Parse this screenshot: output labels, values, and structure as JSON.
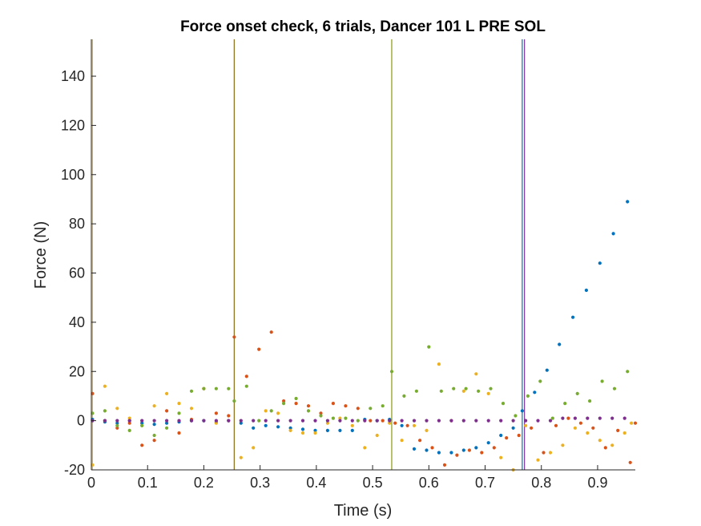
{
  "chart_data": {
    "type": "scatter",
    "title": "Force onset check, 6 trials, Dancer 101 L PRE SOL",
    "xlabel": "Time (s)",
    "ylabel": "Force (N)",
    "xlim": [
      0,
      0.967
    ],
    "ylim": [
      -20,
      155
    ],
    "xticks": [
      0,
      0.1,
      0.2,
      0.3,
      0.4,
      0.5,
      0.6,
      0.7,
      0.8,
      0.9
    ],
    "xtick_labels": [
      "0",
      "0.1",
      "0.2",
      "0.3",
      "0.4",
      "0.5",
      "0.6",
      "0.7",
      "0.8",
      "0.9"
    ],
    "yticks": [
      -20,
      0,
      20,
      40,
      60,
      80,
      100,
      120,
      140
    ],
    "ytick_labels": [
      "-20",
      "0",
      "20",
      "40",
      "60",
      "80",
      "100",
      "120",
      "140"
    ],
    "grid": false,
    "onset_lines": [
      {
        "x": 0.002,
        "color": "#EDB120"
      },
      {
        "x": 0.254,
        "color": "#8B6D14"
      },
      {
        "x": 0.534,
        "color": "#8A9A14"
      },
      {
        "x": 0.766,
        "color": "#0072BD"
      },
      {
        "x": 0.77,
        "color": "#7E2F8E"
      }
    ],
    "series": [
      {
        "color": "#0072BD",
        "points": [
          [
            0.002,
            0.5
          ],
          [
            0.024,
            -0.5
          ],
          [
            0.046,
            -1
          ],
          [
            0.068,
            0
          ],
          [
            0.09,
            -1
          ],
          [
            0.112,
            -1.5
          ],
          [
            0.134,
            -1
          ],
          [
            0.156,
            -0.5
          ],
          [
            0.178,
            0
          ],
          [
            0.2,
            0
          ],
          [
            0.222,
            -0.5
          ],
          [
            0.244,
            0
          ],
          [
            0.266,
            -1
          ],
          [
            0.288,
            -3
          ],
          [
            0.31,
            -2
          ],
          [
            0.332,
            -2.5
          ],
          [
            0.354,
            -3
          ],
          [
            0.376,
            -3.5
          ],
          [
            0.398,
            -4
          ],
          [
            0.42,
            -4
          ],
          [
            0.442,
            -4
          ],
          [
            0.464,
            -4
          ],
          [
            0.486,
            0.5
          ],
          [
            0.508,
            0
          ],
          [
            0.53,
            0.5
          ],
          [
            0.552,
            -2
          ],
          [
            0.574,
            -11.5
          ],
          [
            0.596,
            -12
          ],
          [
            0.618,
            -13
          ],
          [
            0.64,
            -13
          ],
          [
            0.662,
            -12
          ],
          [
            0.684,
            -11
          ],
          [
            0.706,
            -9
          ],
          [
            0.728,
            -6
          ],
          [
            0.75,
            -3
          ],
          [
            0.766,
            4
          ],
          [
            0.788,
            11.5
          ],
          [
            0.81,
            20.5
          ],
          [
            0.832,
            31
          ],
          [
            0.856,
            42
          ],
          [
            0.88,
            53
          ],
          [
            0.904,
            64
          ],
          [
            0.928,
            76
          ],
          [
            0.953,
            89
          ]
        ]
      },
      {
        "color": "#D95319",
        "points": [
          [
            0.002,
            11
          ],
          [
            0.024,
            0
          ],
          [
            0.046,
            -3
          ],
          [
            0.068,
            -1
          ],
          [
            0.09,
            -10
          ],
          [
            0.112,
            -8
          ],
          [
            0.134,
            4
          ],
          [
            0.156,
            -5
          ],
          [
            0.178,
            0.5
          ],
          [
            0.2,
            13
          ],
          [
            0.222,
            3
          ],
          [
            0.244,
            2
          ],
          [
            0.254,
            34
          ],
          [
            0.276,
            18
          ],
          [
            0.298,
            29
          ],
          [
            0.32,
            36
          ],
          [
            0.342,
            8
          ],
          [
            0.364,
            7
          ],
          [
            0.386,
            6
          ],
          [
            0.408,
            3
          ],
          [
            0.43,
            7
          ],
          [
            0.452,
            6
          ],
          [
            0.474,
            5
          ],
          [
            0.496,
            0
          ],
          [
            0.518,
            0
          ],
          [
            0.54,
            -1
          ],
          [
            0.562,
            -2
          ],
          [
            0.584,
            -8
          ],
          [
            0.606,
            -11
          ],
          [
            0.628,
            -18
          ],
          [
            0.65,
            -14
          ],
          [
            0.672,
            -12
          ],
          [
            0.694,
            -13
          ],
          [
            0.716,
            -11
          ],
          [
            0.738,
            -7
          ],
          [
            0.76,
            -6
          ],
          [
            0.782,
            -3
          ],
          [
            0.804,
            -13
          ],
          [
            0.826,
            -2
          ],
          [
            0.848,
            1
          ],
          [
            0.87,
            -1
          ],
          [
            0.892,
            -3
          ],
          [
            0.914,
            -11
          ],
          [
            0.936,
            -4
          ],
          [
            0.958,
            -17
          ],
          [
            0.967,
            -1
          ]
        ]
      },
      {
        "color": "#EDB120",
        "points": [
          [
            0.002,
            -18
          ],
          [
            0.024,
            14
          ],
          [
            0.046,
            5
          ],
          [
            0.068,
            1
          ],
          [
            0.09,
            -2
          ],
          [
            0.112,
            6
          ],
          [
            0.134,
            11
          ],
          [
            0.156,
            7
          ],
          [
            0.178,
            5
          ],
          [
            0.2,
            13
          ],
          [
            0.222,
            -1
          ],
          [
            0.244,
            0
          ],
          [
            0.266,
            -15
          ],
          [
            0.288,
            -11
          ],
          [
            0.31,
            4
          ],
          [
            0.332,
            3
          ],
          [
            0.354,
            -4
          ],
          [
            0.376,
            -5
          ],
          [
            0.398,
            -5
          ],
          [
            0.42,
            -1
          ],
          [
            0.442,
            1
          ],
          [
            0.464,
            -2
          ],
          [
            0.486,
            -11
          ],
          [
            0.508,
            -6
          ],
          [
            0.53,
            -1
          ],
          [
            0.552,
            -8
          ],
          [
            0.574,
            -2
          ],
          [
            0.596,
            -4
          ],
          [
            0.618,
            23
          ],
          [
            0.64,
            0
          ],
          [
            0.662,
            12
          ],
          [
            0.684,
            19
          ],
          [
            0.706,
            11
          ],
          [
            0.728,
            -15
          ],
          [
            0.75,
            -20
          ],
          [
            0.772,
            -2
          ],
          [
            0.794,
            -16
          ],
          [
            0.816,
            -13
          ],
          [
            0.838,
            -10
          ],
          [
            0.86,
            -3
          ],
          [
            0.882,
            -5
          ],
          [
            0.904,
            -8
          ],
          [
            0.926,
            -10
          ],
          [
            0.948,
            -5
          ],
          [
            0.96,
            -1
          ]
        ]
      },
      {
        "color": "#7E2F8E",
        "points": [
          [
            0.002,
            0
          ],
          [
            0.024,
            0
          ],
          [
            0.046,
            0
          ],
          [
            0.068,
            0
          ],
          [
            0.09,
            0
          ],
          [
            0.112,
            0
          ],
          [
            0.134,
            0
          ],
          [
            0.156,
            0
          ],
          [
            0.178,
            0
          ],
          [
            0.2,
            0
          ],
          [
            0.222,
            0
          ],
          [
            0.244,
            0
          ],
          [
            0.266,
            0
          ],
          [
            0.288,
            0
          ],
          [
            0.31,
            0
          ],
          [
            0.332,
            0
          ],
          [
            0.354,
            0
          ],
          [
            0.376,
            0
          ],
          [
            0.398,
            0
          ],
          [
            0.42,
            0
          ],
          [
            0.442,
            0
          ],
          [
            0.464,
            0
          ],
          [
            0.486,
            0
          ],
          [
            0.508,
            0
          ],
          [
            0.53,
            0
          ],
          [
            0.552,
            0
          ],
          [
            0.574,
            0
          ],
          [
            0.596,
            0
          ],
          [
            0.618,
            0
          ],
          [
            0.64,
            0
          ],
          [
            0.662,
            0
          ],
          [
            0.684,
            0
          ],
          [
            0.706,
            0
          ],
          [
            0.728,
            0
          ],
          [
            0.75,
            0
          ],
          [
            0.772,
            0
          ],
          [
            0.794,
            0
          ],
          [
            0.816,
            0
          ],
          [
            0.838,
            1
          ],
          [
            0.86,
            1
          ],
          [
            0.882,
            1
          ],
          [
            0.904,
            1
          ],
          [
            0.926,
            1
          ],
          [
            0.948,
            1
          ]
        ]
      },
      {
        "color": "#77AC30",
        "points": [
          [
            0.002,
            3
          ],
          [
            0.024,
            4
          ],
          [
            0.046,
            -2
          ],
          [
            0.068,
            -4
          ],
          [
            0.09,
            -2
          ],
          [
            0.112,
            -6
          ],
          [
            0.134,
            -3
          ],
          [
            0.156,
            3
          ],
          [
            0.178,
            12
          ],
          [
            0.2,
            13
          ],
          [
            0.222,
            13
          ],
          [
            0.244,
            13
          ],
          [
            0.254,
            8
          ],
          [
            0.276,
            14
          ],
          [
            0.298,
            0
          ],
          [
            0.32,
            4
          ],
          [
            0.342,
            7
          ],
          [
            0.364,
            9
          ],
          [
            0.386,
            4
          ],
          [
            0.408,
            2
          ],
          [
            0.43,
            1
          ],
          [
            0.452,
            1
          ],
          [
            0.474,
            0
          ],
          [
            0.496,
            5
          ],
          [
            0.518,
            6
          ],
          [
            0.534,
            20
          ],
          [
            0.556,
            10
          ],
          [
            0.578,
            12
          ],
          [
            0.6,
            30
          ],
          [
            0.622,
            12
          ],
          [
            0.644,
            13
          ],
          [
            0.666,
            13
          ],
          [
            0.688,
            12
          ],
          [
            0.71,
            13
          ],
          [
            0.732,
            7
          ],
          [
            0.754,
            2
          ],
          [
            0.776,
            10
          ],
          [
            0.798,
            16
          ],
          [
            0.82,
            1
          ],
          [
            0.842,
            7
          ],
          [
            0.864,
            11
          ],
          [
            0.886,
            8
          ],
          [
            0.908,
            16
          ],
          [
            0.93,
            13
          ],
          [
            0.953,
            20
          ]
        ]
      }
    ]
  }
}
